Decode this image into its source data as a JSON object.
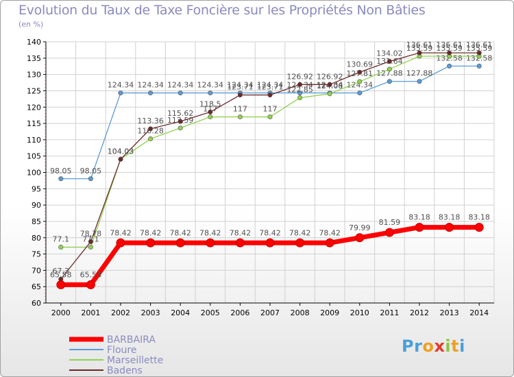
{
  "chart_data": {
    "type": "line",
    "title": "Evolution du Taux de Taxe Foncière sur les Propriétés Non Bâties",
    "ylabel": "(en %)",
    "ylim": [
      60,
      140
    ],
    "yticks": [
      60,
      65,
      70,
      75,
      80,
      85,
      90,
      95,
      100,
      105,
      110,
      115,
      120,
      125,
      130,
      135,
      140
    ],
    "categories": [
      "2000",
      "2001",
      "2002",
      "2003",
      "2004",
      "2005",
      "2006",
      "2007",
      "2008",
      "2009",
      "2010",
      "2011",
      "2012",
      "2013",
      "2014"
    ],
    "series": [
      {
        "name": "BARBAIRA",
        "color": "#ff0000",
        "values": [
          65.58,
          65.58,
          78.42,
          78.42,
          78.42,
          78.42,
          78.42,
          78.42,
          78.42,
          78.42,
          79.99,
          81.59,
          83.18,
          83.18,
          83.18
        ],
        "labels": [
          "65.58",
          "65.58",
          "78.42",
          "78.42",
          "78.42",
          "78.42",
          "78.42",
          "78.42",
          "78.42",
          "78.42",
          "79.99",
          "81.59",
          "83.18",
          "83.18",
          "83.18"
        ]
      },
      {
        "name": "Floure",
        "color": "#5b9bd5",
        "values": [
          98.05,
          98.05,
          124.34,
          124.34,
          124.34,
          124.34,
          124.34,
          124.34,
          124.34,
          124.34,
          124.34,
          127.88,
          127.88,
          132.58,
          132.58
        ],
        "labels": [
          "98.05",
          "98.05",
          "124.34",
          "124.34",
          "124.34",
          "124.34",
          "124.34",
          "124.34",
          "124.34",
          "124.34",
          "124.34",
          "127.88",
          "127.88",
          "132.58",
          "132.58"
        ]
      },
      {
        "name": "Marseillette",
        "color": "#92d050",
        "values": [
          77.1,
          77.1,
          104.03,
          110.28,
          113.59,
          117,
          117,
          117,
          122.85,
          124.08,
          127.81,
          131.64,
          135.59,
          135.59,
          135.59
        ],
        "labels": [
          "77.1",
          "77.1",
          "104.03",
          "110.28",
          "113.59",
          "117",
          "117",
          "117",
          "122.85",
          "124.08",
          "127.81",
          "131.64",
          "135.59",
          "135.59",
          "135.59"
        ]
      },
      {
        "name": "Badens",
        "color": "#6b2a2a",
        "values": [
          67.3,
          78.78,
          104.03,
          113.36,
          115.62,
          118.5,
          123.71,
          123.71,
          126.92,
          126.92,
          130.69,
          134.02,
          136.61,
          136.61,
          136.61
        ],
        "labels": [
          "67.3",
          "78.78",
          "104.03",
          "113.36",
          "115.62",
          "118.5",
          "123.71",
          "123.71",
          "126.92",
          "126.92",
          "130.69",
          "134.02",
          "136.61",
          "136.61",
          "136.61"
        ]
      }
    ]
  },
  "logo": {
    "text": "Proxiti",
    "letters": [
      "P",
      "r",
      "o",
      "x",
      "i",
      "t",
      "i"
    ]
  }
}
